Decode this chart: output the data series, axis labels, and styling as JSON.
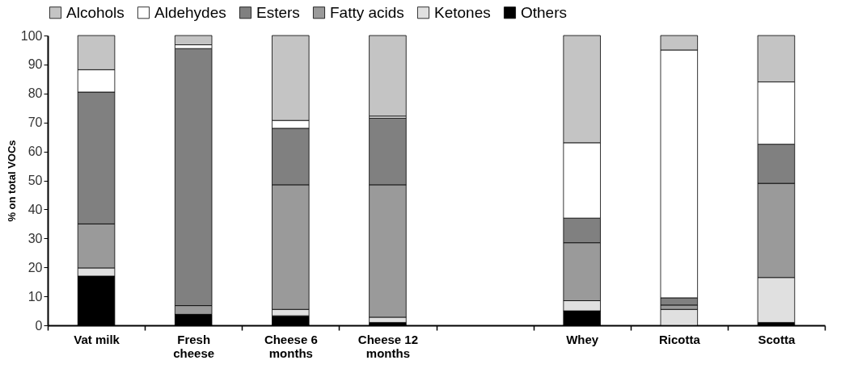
{
  "chart_data": {
    "type": "bar",
    "stacked": true,
    "ylabel": "% on total VOCs",
    "categories": [
      "Vat milk",
      "Fresh cheese",
      "Cheese 6 months",
      "Cheese 12 months",
      null,
      "Whey",
      "Ricotta",
      "Scotta"
    ],
    "series": [
      {
        "name": "Others",
        "color": "#000000",
        "values": [
          17,
          3.8,
          3.3,
          1,
          null,
          5,
          0,
          1
        ]
      },
      {
        "name": "Ketones",
        "color": "#e0e0e0",
        "values": [
          2.8,
          0,
          2.2,
          1.8,
          null,
          3.5,
          5.5,
          15.5
        ]
      },
      {
        "name": "Fatty acids",
        "color": "#9a9a9a",
        "values": [
          15.2,
          3,
          43,
          45.7,
          null,
          20,
          1.5,
          32.5
        ]
      },
      {
        "name": "Esters",
        "color": "#808080",
        "values": [
          45.5,
          88.7,
          19.5,
          23,
          null,
          8.5,
          2.5,
          13.5
        ]
      },
      {
        "name": "Aldehydes",
        "color": "#ffffff",
        "values": [
          7.7,
          1.3,
          2.7,
          0.7,
          null,
          26,
          85.5,
          21.5
        ]
      },
      {
        "name": "Alcohols",
        "color": "#c4c4c4",
        "values": [
          11.8,
          3.2,
          29.3,
          27.8,
          null,
          37,
          5,
          16
        ]
      }
    ],
    "ylim": [
      0,
      100
    ],
    "yticks": [
      0,
      10,
      20,
      30,
      40,
      50,
      60,
      70,
      80,
      90,
      100
    ],
    "grid": false,
    "legend": "top"
  }
}
